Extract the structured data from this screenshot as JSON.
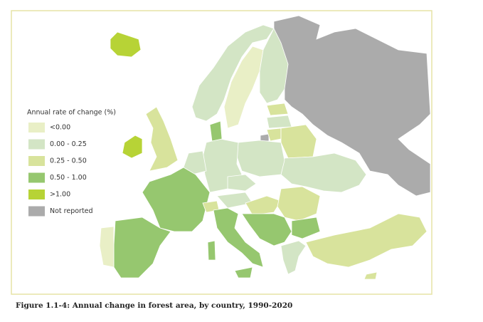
{
  "legend": {
    "title": "Annual rate of change (%)",
    "items": [
      {
        "label": "<0.00",
        "color": "#e9efc6"
      },
      {
        "label": "0.00 - 0.25",
        "color": "#d3e5c5"
      },
      {
        "label": "0.25 - 0.50",
        "color": "#d8e39c"
      },
      {
        "label": "0.50 - 1.00",
        "color": "#96c76f"
      },
      {
        "label": ">1.00",
        "color": "#b7d336"
      },
      {
        "label": "Not reported",
        "color": "#ababab"
      }
    ]
  },
  "caption": "Figure 1.1-4: Annual change in forest area, by country, 1990-2020"
}
